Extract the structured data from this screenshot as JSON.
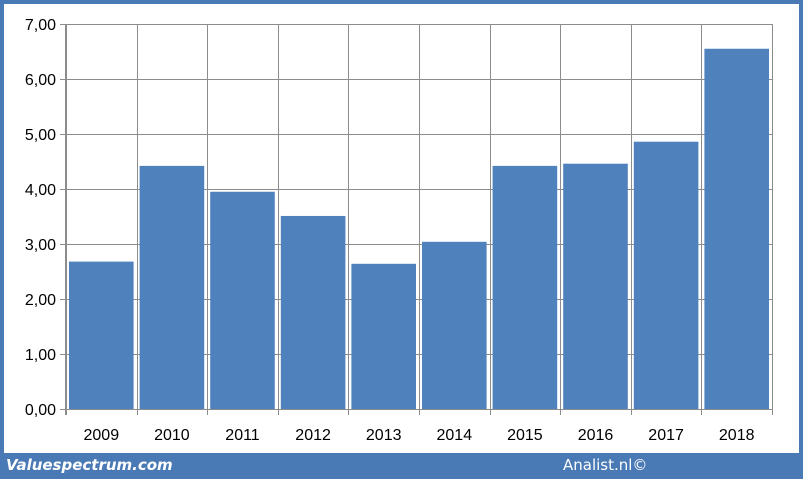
{
  "chart_data": {
    "type": "bar",
    "categories": [
      "2009",
      "2010",
      "2011",
      "2012",
      "2013",
      "2014",
      "2015",
      "2016",
      "2017",
      "2018"
    ],
    "values": [
      2.68,
      4.42,
      3.95,
      3.51,
      2.64,
      3.04,
      4.42,
      4.46,
      4.86,
      6.55
    ],
    "ylim": [
      0,
      7
    ],
    "yticks": [
      "0,00",
      "1,00",
      "2,00",
      "3,00",
      "4,00",
      "5,00",
      "6,00",
      "7,00"
    ],
    "grid": true,
    "bar_color": "#4f81bd",
    "grid_color": "#8c8c8c"
  },
  "footer": {
    "left_text": "Valuespectrum.com",
    "right_text": "Analist.nl©",
    "background_color": "#4a7ab5"
  }
}
